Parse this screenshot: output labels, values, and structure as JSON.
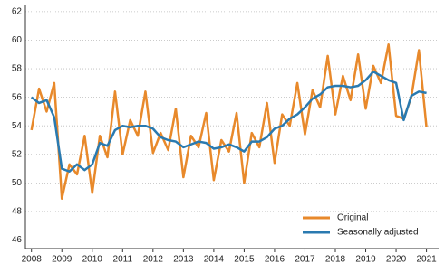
{
  "chart_data": {
    "type": "line",
    "x": [
      2008,
      2008.25,
      2008.5,
      2008.75,
      2009,
      2009.25,
      2009.5,
      2009.75,
      2010,
      2010.25,
      2010.5,
      2010.75,
      2011,
      2011.25,
      2011.5,
      2011.75,
      2012,
      2012.25,
      2012.5,
      2012.75,
      2013,
      2013.25,
      2013.5,
      2013.75,
      2014,
      2014.25,
      2014.5,
      2014.75,
      2015,
      2015.25,
      2015.5,
      2015.75,
      2016,
      2016.25,
      2016.5,
      2016.75,
      2017,
      2017.25,
      2017.5,
      2017.75,
      2018,
      2018.25,
      2018.5,
      2018.75,
      2019,
      2019.25,
      2019.5,
      2019.75,
      2020,
      2020.25,
      2020.5,
      2020.75,
      2021
    ],
    "series": [
      {
        "name": "Original",
        "color": "#e8892b",
        "values": [
          53.7,
          56.6,
          55.0,
          57.0,
          48.9,
          51.3,
          50.6,
          53.3,
          49.3,
          53.3,
          51.8,
          56.4,
          52.0,
          54.4,
          53.3,
          56.4,
          52.1,
          53.5,
          52.3,
          55.2,
          50.4,
          53.3,
          52.5,
          54.9,
          50.2,
          53.0,
          52.2,
          54.9,
          50.0,
          53.5,
          52.5,
          55.6,
          51.4,
          54.8,
          54.0,
          57.0,
          53.4,
          56.5,
          55.3,
          58.9,
          54.8,
          57.5,
          55.8,
          59.0,
          55.2,
          58.2,
          57.0,
          59.7,
          54.7,
          54.5,
          56.0,
          59.3,
          53.9
        ]
      },
      {
        "name": "Seasonally adjusted",
        "color": "#2a7ab0",
        "values": [
          56.0,
          55.6,
          55.8,
          54.6,
          51.0,
          50.8,
          51.3,
          50.9,
          51.3,
          52.8,
          52.6,
          53.7,
          54.0,
          53.9,
          54.0,
          54.0,
          53.8,
          53.2,
          53.0,
          52.9,
          52.5,
          52.7,
          52.9,
          52.8,
          52.4,
          52.5,
          52.7,
          52.5,
          52.2,
          52.9,
          52.9,
          53.2,
          53.8,
          54.0,
          54.5,
          54.8,
          55.3,
          55.9,
          56.2,
          56.7,
          56.8,
          56.8,
          56.7,
          56.8,
          57.2,
          57.8,
          57.5,
          57.2,
          57.0,
          54.4,
          56.1,
          56.4,
          56.3
        ]
      }
    ],
    "xlim": [
      2007.8,
      2021.4
    ],
    "xticks": [
      2008,
      2009,
      2010,
      2011,
      2012,
      2013,
      2014,
      2015,
      2016,
      2017,
      2018,
      2019,
      2020,
      2021
    ],
    "ylim": [
      45.4,
      62.5
    ],
    "yticks": [
      46,
      48,
      50,
      52,
      54,
      56,
      58,
      60,
      62
    ],
    "grid": true,
    "legend": "lower right"
  }
}
